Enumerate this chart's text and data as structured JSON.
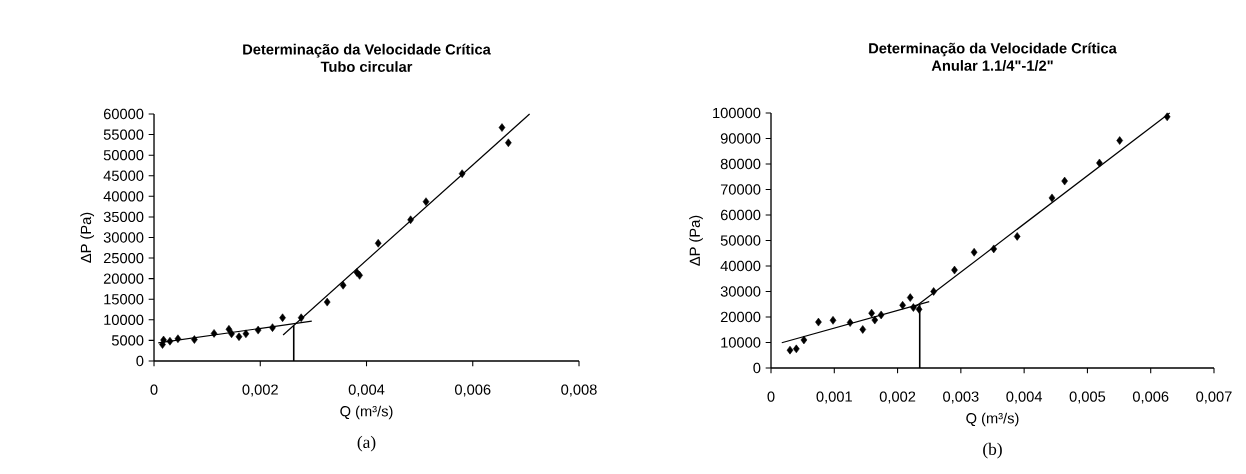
{
  "chart_data": [
    {
      "type": "scatter",
      "title": "Determinação da Velocidade Crítica",
      "subtitle": "Tubo circular",
      "xlabel": "Q (m³/s)",
      "ylabel": "ΔP (Pa)",
      "xlim": [
        0,
        0.008
      ],
      "ylim": [
        0,
        60000
      ],
      "xticks": [
        0,
        {
          "value": 0.002,
          "label": "0,002"
        },
        {
          "value": 0.004,
          "label": "0,004"
        },
        {
          "value": 0.006,
          "label": "0,006"
        },
        {
          "value": 0.008,
          "label": "0,008"
        }
      ],
      "yticks": [
        0,
        5000,
        10000,
        15000,
        20000,
        25000,
        30000,
        35000,
        40000,
        45000,
        50000,
        55000,
        60000
      ],
      "grid": false,
      "annotations": [
        "(a)"
      ],
      "series": [
        {
          "marker": "diamond",
          "color": "#000000",
          "x": [
            0.00016,
            0.00018,
            0.0003,
            0.00045,
            0.00076,
            0.00113,
            0.00141,
            0.00146,
            0.0016,
            0.00173,
            0.00196,
            0.00223,
            0.00242,
            0.00277,
            0.00326,
            0.00356,
            0.00382,
            0.00387,
            0.00422,
            0.00483,
            0.00512,
            0.0058,
            0.00655,
            0.00667
          ],
          "values": [
            4000,
            5100,
            4800,
            5400,
            5200,
            6700,
            7700,
            6600,
            5900,
            6600,
            7500,
            8100,
            10500,
            10500,
            14300,
            18400,
            21500,
            20800,
            28600,
            34300,
            38700,
            45500,
            56700,
            53000
          ]
        },
        {
          "type": "line",
          "marker": "none",
          "line_style": "solid",
          "color": "#000000",
          "x": [
            8e-05,
            0.00297
          ],
          "values": [
            4400,
            9700
          ]
        },
        {
          "type": "line",
          "marker": "none",
          "line_style": "solid",
          "color": "#000000",
          "x": [
            0.00243,
            0.00707
          ],
          "values": [
            6300,
            60000
          ]
        }
      ],
      "ref_lines": [
        {
          "axis": "x",
          "value": 0.00263,
          "color": "#000000"
        }
      ]
    },
    {
      "type": "scatter",
      "title": "Determinação da Velocidade Crítica",
      "subtitle": "Anular 1.1/4\"-1/2\"",
      "xlabel": "Q (m³/s)",
      "ylabel": "ΔP (Pa)",
      "xlim": [
        0,
        0.007
      ],
      "ylim": [
        0,
        100000
      ],
      "xticks": [
        0,
        {
          "value": 0.001,
          "label": "0,001"
        },
        {
          "value": 0.002,
          "label": "0,002"
        },
        {
          "value": 0.003,
          "label": "0,003"
        },
        {
          "value": 0.004,
          "label": "0,004"
        },
        {
          "value": 0.005,
          "label": "0,005"
        },
        {
          "value": 0.006,
          "label": "0,006"
        },
        {
          "value": 0.007,
          "label": "0,007"
        }
      ],
      "yticks": [
        0,
        10000,
        20000,
        30000,
        40000,
        50000,
        60000,
        70000,
        80000,
        90000,
        100000
      ],
      "grid": false,
      "annotations": [
        "(b)"
      ],
      "series": [
        {
          "marker": "diamond",
          "color": "#000000",
          "x": [
            0.0003,
            0.0004,
            0.00052,
            0.00075,
            0.00098,
            0.00125,
            0.00145,
            0.00159,
            0.00164,
            0.00174,
            0.00208,
            0.0022,
            0.00225,
            0.00234,
            0.00257,
            0.0029,
            0.00321,
            0.00352,
            0.00389,
            0.00444,
            0.00464,
            0.00519,
            0.00551,
            0.00626
          ],
          "values": [
            7000,
            7500,
            11000,
            18000,
            18700,
            17800,
            15100,
            21500,
            18800,
            20800,
            24600,
            27600,
            23700,
            23000,
            30000,
            38400,
            45400,
            46700,
            51600,
            66700,
            73300,
            80400,
            89200,
            98500
          ]
        },
        {
          "type": "line",
          "marker": "none",
          "line_style": "solid",
          "color": "#000000",
          "x": [
            0.00017,
            0.0025
          ],
          "values": [
            9900,
            26000
          ]
        },
        {
          "type": "line",
          "marker": "none",
          "line_style": "solid",
          "color": "#000000",
          "x": [
            0.00225,
            0.0063
          ],
          "values": [
            23400,
            100000
          ]
        }
      ],
      "ref_lines": [
        {
          "axis": "x",
          "value": 0.00235,
          "color": "#000000"
        }
      ]
    }
  ]
}
